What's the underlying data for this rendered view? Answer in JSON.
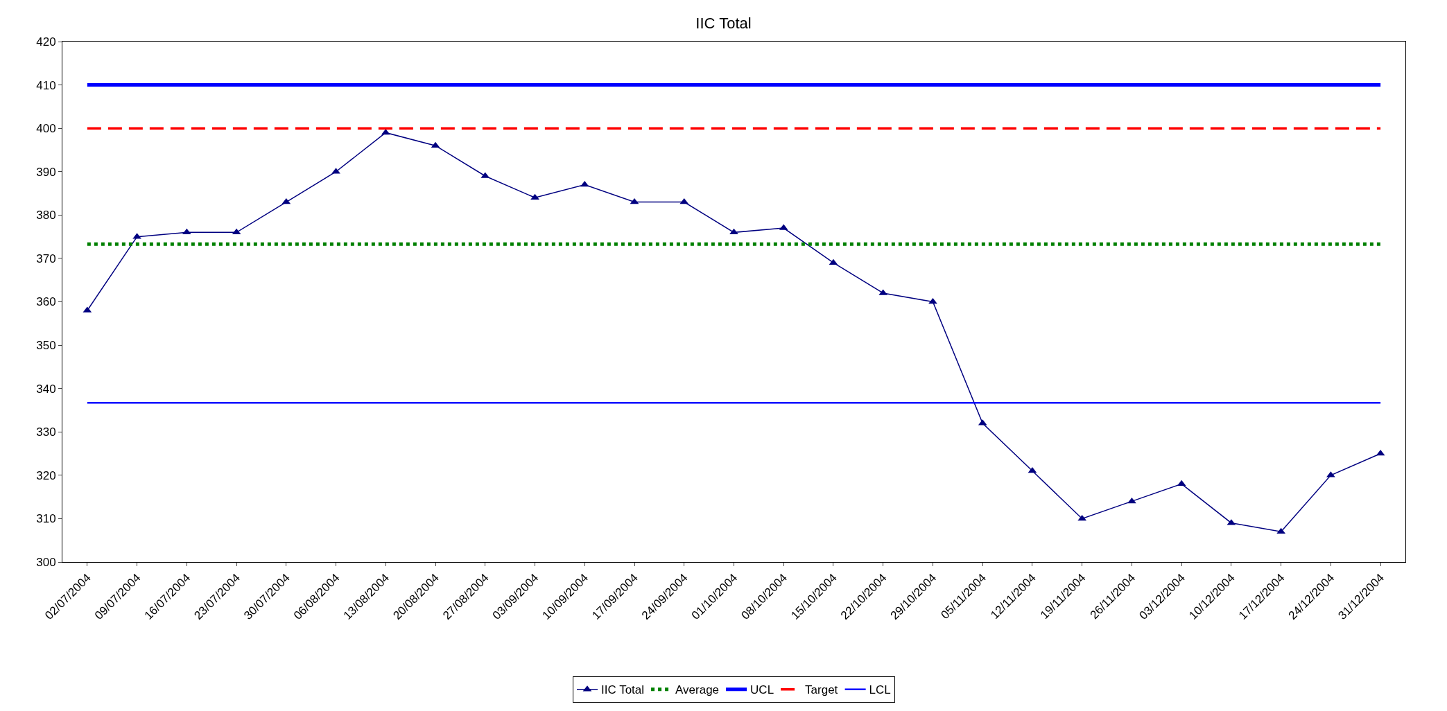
{
  "chart_data": {
    "type": "line",
    "title": "IIC Total",
    "categories": [
      "02/07/2004",
      "09/07/2004",
      "16/07/2004",
      "23/07/2004",
      "30/07/2004",
      "06/08/2004",
      "13/08/2004",
      "20/08/2004",
      "27/08/2004",
      "03/09/2004",
      "10/09/2004",
      "17/09/2004",
      "24/09/2004",
      "01/10/2004",
      "08/10/2004",
      "15/10/2004",
      "22/10/2004",
      "29/10/2004",
      "05/11/2004",
      "12/11/2004",
      "19/11/2004",
      "26/11/2004",
      "03/12/2004",
      "10/12/2004",
      "17/12/2004",
      "24/12/2004",
      "31/12/2004"
    ],
    "series": [
      {
        "name": "IIC Total",
        "color": "#000080",
        "marker": "triangle",
        "line_style": "solid",
        "values": [
          358,
          375,
          376,
          376,
          383,
          390,
          399,
          396,
          389,
          384,
          387,
          383,
          383,
          376,
          377,
          369,
          362,
          360,
          332,
          321,
          310,
          314,
          318,
          309,
          307,
          320,
          325
        ]
      },
      {
        "name": "Average",
        "color": "#008000",
        "marker": "none",
        "line_style": "dotted",
        "values": [
          373.3,
          373.3,
          373.3,
          373.3,
          373.3,
          373.3,
          373.3,
          373.3,
          373.3,
          373.3,
          373.3,
          373.3,
          373.3,
          373.3,
          373.3,
          373.3,
          373.3,
          373.3,
          373.3,
          373.3,
          373.3,
          373.3,
          373.3,
          373.3,
          373.3,
          373.3,
          373.3
        ]
      },
      {
        "name": "UCL",
        "color": "#0000ff",
        "marker": "none",
        "line_style": "solid",
        "values": [
          410,
          410,
          410,
          410,
          410,
          410,
          410,
          410,
          410,
          410,
          410,
          410,
          410,
          410,
          410,
          410,
          410,
          410,
          410,
          410,
          410,
          410,
          410,
          410,
          410,
          410,
          410
        ]
      },
      {
        "name": "Target",
        "color": "#ff0000",
        "marker": "none",
        "line_style": "dashed",
        "values": [
          400,
          400,
          400,
          400,
          400,
          400,
          400,
          400,
          400,
          400,
          400,
          400,
          400,
          400,
          400,
          400,
          400,
          400,
          400,
          400,
          400,
          400,
          400,
          400,
          400,
          400,
          400
        ]
      },
      {
        "name": "LCL",
        "color": "#0000ff",
        "marker": "none",
        "line_style": "solid",
        "values": [
          336.7,
          336.7,
          336.7,
          336.7,
          336.7,
          336.7,
          336.7,
          336.7,
          336.7,
          336.7,
          336.7,
          336.7,
          336.7,
          336.7,
          336.7,
          336.7,
          336.7,
          336.7,
          336.7,
          336.7,
          336.7,
          336.7,
          336.7,
          336.7,
          336.7,
          336.7,
          336.7
        ]
      }
    ],
    "ylim": [
      300,
      420
    ],
    "yticks": [
      300,
      310,
      320,
      330,
      340,
      350,
      360,
      370,
      380,
      390,
      400,
      410,
      420
    ],
    "grid": false,
    "legend": "bottom"
  }
}
